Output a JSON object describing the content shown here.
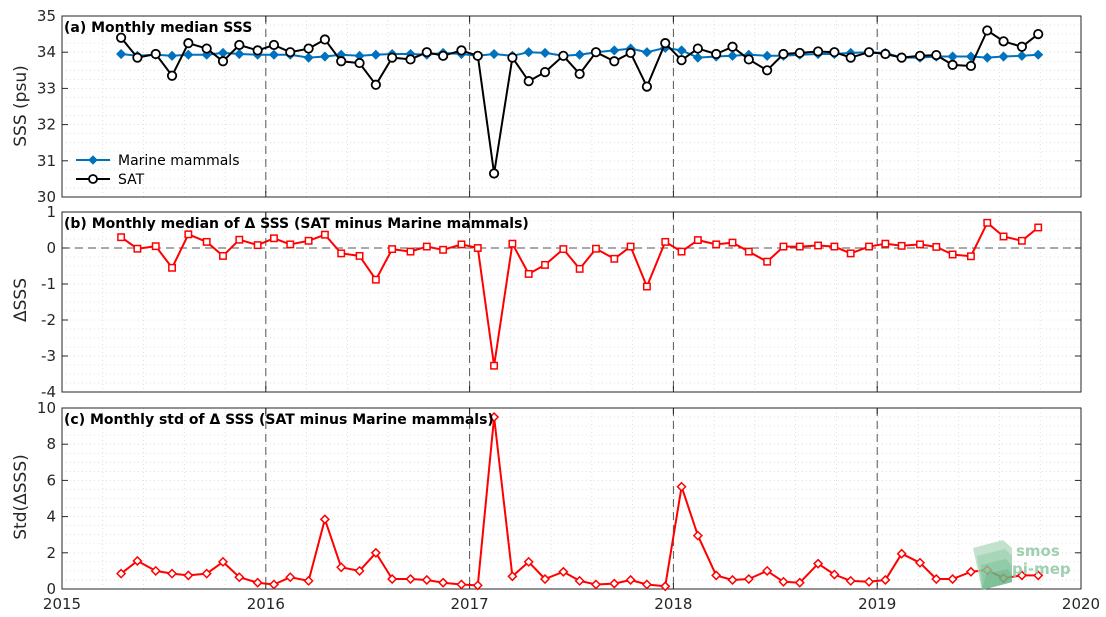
{
  "colors": {
    "marine": "#0072bd",
    "sat": "#000000",
    "delta": "#ff0000",
    "axis": "#262626",
    "grid": "#d9d9d9",
    "logo": "#8fc9a4"
  },
  "x_axis": {
    "range": [
      2015,
      2020
    ],
    "ticks": [
      2015,
      2016,
      2017,
      2018,
      2019,
      2020
    ],
    "tick_labels": [
      "2015",
      "2016",
      "2017",
      "2018",
      "2019",
      "2020"
    ],
    "year_dividers": [
      2016,
      2017,
      2018,
      2019
    ]
  },
  "logo": {
    "text_line1": "smos",
    "text_line2": "pi-mep"
  },
  "chart_data": [
    {
      "type": "line",
      "title": "(a) Monthly median SSS",
      "ylabel": "SSS (psu)",
      "ylim": [
        30,
        35
      ],
      "yticks": [
        30,
        31,
        32,
        33,
        34,
        35
      ],
      "ytick_labels": [
        "30",
        "31",
        "32",
        "33",
        "34",
        "35"
      ],
      "grid": true,
      "legend": {
        "placement": "center-left",
        "entries": [
          "Marine mammals",
          "SAT"
        ]
      },
      "x": [
        2015.29,
        2015.37,
        2015.46,
        2015.54,
        2015.62,
        2015.71,
        2015.79,
        2015.87,
        2015.96,
        2016.04,
        2016.12,
        2016.21,
        2016.29,
        2016.37,
        2016.46,
        2016.54,
        2016.62,
        2016.71,
        2016.79,
        2016.87,
        2016.96,
        2017.04,
        2017.12,
        2017.21,
        2017.29,
        2017.37,
        2017.46,
        2017.54,
        2017.62,
        2017.71,
        2017.79,
        2017.87,
        2017.96,
        2018.04,
        2018.12,
        2018.21,
        2018.29,
        2018.37,
        2018.46,
        2018.54,
        2018.62,
        2018.71,
        2018.79,
        2018.87,
        2018.96,
        2019.04,
        2019.12,
        2019.21,
        2019.29,
        2019.37,
        2019.46,
        2019.54,
        2019.62,
        2019.71,
        2019.79
      ],
      "series": [
        {
          "name": "Marine mammals",
          "color": "#0072bd",
          "marker": "diamond",
          "values": [
            33.95,
            33.9,
            33.93,
            33.9,
            33.93,
            33.93,
            33.98,
            33.95,
            33.93,
            33.93,
            33.93,
            33.85,
            33.88,
            33.93,
            33.9,
            33.93,
            33.95,
            33.95,
            33.93,
            33.98,
            33.95,
            33.9,
            33.95,
            33.9,
            34.0,
            33.98,
            33.9,
            33.93,
            34.0,
            34.05,
            34.1,
            34.0,
            34.12,
            34.05,
            33.85,
            33.88,
            33.9,
            33.93,
            33.9,
            33.9,
            33.93,
            33.95,
            33.95,
            33.98,
            34.0,
            33.98,
            33.85,
            33.85,
            33.88,
            33.88,
            33.88,
            33.85,
            33.88,
            33.9,
            33.93
          ]
        },
        {
          "name": "SAT",
          "color": "#000000",
          "marker": "circle",
          "values": [
            34.4,
            33.85,
            33.95,
            33.35,
            34.25,
            34.1,
            33.75,
            34.2,
            34.05,
            34.2,
            34.0,
            34.1,
            34.35,
            33.75,
            33.7,
            33.1,
            33.85,
            33.8,
            34.0,
            33.9,
            34.05,
            33.9,
            30.65,
            33.85,
            33.2,
            33.45,
            33.9,
            33.4,
            34.0,
            33.75,
            33.98,
            33.05,
            34.25,
            33.78,
            34.1,
            33.95,
            34.15,
            33.8,
            33.5,
            33.95,
            33.98,
            34.02,
            34.0,
            33.85,
            34.0,
            33.95,
            33.85,
            33.9,
            33.92,
            33.65,
            33.62,
            34.6,
            34.3,
            34.15,
            34.5
          ]
        }
      ]
    },
    {
      "type": "line",
      "title": "(b) Monthly median of Δ SSS (SAT minus Marine mammals)",
      "ylabel": "ΔSSS",
      "ylim": [
        -4,
        1
      ],
      "yticks": [
        -4,
        -3,
        -2,
        -1,
        0,
        1
      ],
      "ytick_labels": [
        "-4",
        "-3",
        "-2",
        "-1",
        "0",
        "1"
      ],
      "zero_line": true,
      "grid": true,
      "x": [
        2015.29,
        2015.37,
        2015.46,
        2015.54,
        2015.62,
        2015.71,
        2015.79,
        2015.87,
        2015.96,
        2016.04,
        2016.12,
        2016.21,
        2016.29,
        2016.37,
        2016.46,
        2016.54,
        2016.62,
        2016.71,
        2016.79,
        2016.87,
        2016.96,
        2017.04,
        2017.12,
        2017.21,
        2017.29,
        2017.37,
        2017.46,
        2017.54,
        2017.62,
        2017.71,
        2017.79,
        2017.87,
        2017.96,
        2018.04,
        2018.12,
        2018.21,
        2018.29,
        2018.37,
        2018.46,
        2018.54,
        2018.62,
        2018.71,
        2018.79,
        2018.87,
        2018.96,
        2019.04,
        2019.12,
        2019.21,
        2019.29,
        2019.37,
        2019.46,
        2019.54,
        2019.62,
        2019.71,
        2019.79
      ],
      "series": [
        {
          "color": "#ff0000",
          "marker": "square",
          "values": [
            0.3,
            -0.02,
            0.05,
            -0.55,
            0.38,
            0.17,
            -0.22,
            0.23,
            0.08,
            0.27,
            0.1,
            0.2,
            0.37,
            -0.15,
            -0.22,
            -0.88,
            -0.03,
            -0.1,
            0.04,
            -0.05,
            0.1,
            0.0,
            -3.27,
            0.12,
            -0.72,
            -0.47,
            -0.03,
            -0.58,
            -0.02,
            -0.3,
            0.04,
            -1.07,
            0.17,
            -0.1,
            0.22,
            0.1,
            0.15,
            -0.1,
            -0.38,
            0.04,
            0.04,
            0.07,
            0.04,
            -0.15,
            0.04,
            0.12,
            0.06,
            0.1,
            0.03,
            -0.18,
            -0.23,
            0.7,
            0.32,
            0.2,
            0.57
          ]
        }
      ]
    },
    {
      "type": "line",
      "title": "(c) Monthly std of Δ SSS (SAT minus Marine mammals)",
      "ylabel": "Std(ΔSSS)",
      "ylim": [
        0,
        10
      ],
      "yticks": [
        0,
        2,
        4,
        6,
        8,
        10
      ],
      "ytick_labels": [
        "0",
        "2",
        "4",
        "6",
        "8",
        "10"
      ],
      "grid": true,
      "x": [
        2015.29,
        2015.37,
        2015.46,
        2015.54,
        2015.62,
        2015.71,
        2015.79,
        2015.87,
        2015.96,
        2016.04,
        2016.12,
        2016.21,
        2016.29,
        2016.37,
        2016.46,
        2016.54,
        2016.62,
        2016.71,
        2016.79,
        2016.87,
        2016.96,
        2017.04,
        2017.12,
        2017.21,
        2017.29,
        2017.37,
        2017.46,
        2017.54,
        2017.62,
        2017.71,
        2017.79,
        2017.87,
        2017.96,
        2018.04,
        2018.12,
        2018.21,
        2018.29,
        2018.37,
        2018.46,
        2018.54,
        2018.62,
        2018.71,
        2018.79,
        2018.87,
        2018.96,
        2019.04,
        2019.12,
        2019.21,
        2019.29,
        2019.37,
        2019.46,
        2019.54,
        2019.62,
        2019.71,
        2019.79
      ],
      "series": [
        {
          "color": "#ff0000",
          "marker": "diamond",
          "values": [
            0.85,
            1.55,
            1.0,
            0.85,
            0.75,
            0.85,
            1.5,
            0.65,
            0.35,
            0.25,
            0.65,
            0.45,
            3.85,
            1.2,
            1.0,
            2.0,
            0.55,
            0.55,
            0.5,
            0.35,
            0.25,
            0.2,
            9.5,
            0.7,
            1.5,
            0.55,
            0.95,
            0.45,
            0.25,
            0.3,
            0.5,
            0.25,
            0.15,
            5.65,
            2.95,
            0.75,
            0.5,
            0.55,
            1.0,
            0.4,
            0.35,
            1.4,
            0.8,
            0.45,
            0.4,
            0.5,
            1.95,
            1.45,
            0.55,
            0.55,
            0.95,
            1.05,
            0.6,
            0.75,
            0.75
          ]
        }
      ]
    }
  ]
}
